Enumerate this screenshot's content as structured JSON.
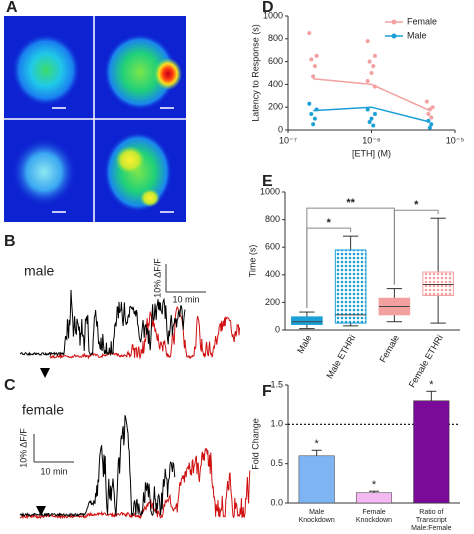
{
  "figure": {
    "panel_labels": [
      "A",
      "B",
      "C",
      "D",
      "E",
      "F"
    ],
    "trace_labels": [
      "male",
      "female"
    ],
    "scale_bar": {
      "y": "10% ΔF/F",
      "x": "10 min"
    }
  },
  "chart_data": [
    {
      "type": "line",
      "xscale": "log",
      "ylabel": "Latency to Response (s)",
      "xlabel": "[ETH] (M)",
      "x": [
        2e-07,
        1e-06,
        5e-06
      ],
      "xlim": [
        1e-07,
        1e-05
      ],
      "xticks": [
        {
          "value": 1e-07,
          "label": "10⁻⁷"
        },
        {
          "value": 1e-06,
          "label": "10⁻⁶"
        },
        {
          "value": 1e-05,
          "label": "10⁻⁵"
        }
      ],
      "ylim": [
        0,
        1000
      ],
      "yticks": [
        0,
        200,
        400,
        600,
        800,
        1000
      ],
      "legend": "top-right",
      "series": [
        {
          "name": "Female",
          "color": "#f2a0a0",
          "values": [
            450,
            400,
            170
          ],
          "points": {
            "x": [
              1.8e-07,
              2.2e-07,
              1.9e-07,
              2.1e-07,
              2e-07,
              9e-07,
              1.1e-06,
              9.5e-07,
              1.05e-06,
              1e-06,
              9e-07,
              1.1e-06,
              4.6e-06,
              5.4e-06,
              5e-06,
              4.8e-06,
              5.2e-06
            ],
            "y": [
              850,
              650,
              620,
              560,
              470,
              780,
              650,
              600,
              560,
              500,
              430,
              380,
              250,
              200,
              180,
              140,
              110
            ]
          }
        },
        {
          "name": "Male",
          "color": "#1a9fd6",
          "values": [
            170,
            200,
            70
          ],
          "points": {
            "x": [
              1.8e-07,
              2.2e-07,
              1.9e-07,
              2.1e-07,
              2e-07,
              9e-07,
              1.1e-06,
              1e-06,
              9.5e-07,
              1.05e-06,
              4.8e-06,
              5.2e-06,
              5e-06
            ],
            "y": [
              230,
              180,
              140,
              100,
              50,
              180,
              140,
              100,
              70,
              40,
              80,
              50,
              20
            ]
          }
        }
      ]
    },
    {
      "type": "box",
      "ylabel": "Time (s)",
      "categories": [
        "Male",
        "Male ETHRi",
        "Female",
        "Female ETHRi"
      ],
      "colors": [
        "#1a9fd6",
        "#1a9fd6",
        "#f2a0a0",
        "#f2a0a0"
      ],
      "hatched": [
        false,
        true,
        false,
        true
      ],
      "boxes": [
        {
          "min": 10,
          "q1": 40,
          "median": 60,
          "q3": 95,
          "max": 130
        },
        {
          "min": 30,
          "q1": 50,
          "median": 110,
          "q3": 580,
          "max": 680
        },
        {
          "min": 60,
          "q1": 110,
          "median": 170,
          "q3": 230,
          "max": 300
        },
        {
          "min": 50,
          "q1": 250,
          "median": 330,
          "q3": 420,
          "max": 810
        }
      ],
      "ylim": [
        0,
        1000
      ],
      "yticks": [
        0,
        200,
        400,
        600,
        800,
        1000
      ],
      "annotations": [
        {
          "text": "*",
          "between": [
            0,
            1
          ]
        },
        {
          "text": "**",
          "between": [
            0,
            2
          ]
        },
        {
          "text": "*",
          "between": [
            2,
            3
          ]
        }
      ]
    },
    {
      "type": "bar",
      "ylabel": "Fold Change",
      "categories": [
        [
          "Male",
          "Knockdown"
        ],
        [
          "Female",
          "Knockdown"
        ],
        [
          "Ratio of",
          "Transcript",
          "Male:Female"
        ]
      ],
      "values": [
        0.6,
        0.13,
        1.3
      ],
      "errors": [
        0.07,
        0.02,
        0.12
      ],
      "colors": [
        "#7fb4f4",
        "#f4b8f2",
        "#7a0b98"
      ],
      "value_labels": [
        "*",
        "*",
        "*"
      ],
      "reference_line": 1,
      "ylim": [
        0,
        1.5
      ],
      "yticks": [
        {
          "value": 0,
          "label": "0.0"
        },
        {
          "value": 0.5,
          "label": "0.5"
        },
        {
          "value": 1,
          "label": "1.0"
        },
        {
          "value": 1.5,
          "label": "1.5"
        }
      ]
    }
  ]
}
